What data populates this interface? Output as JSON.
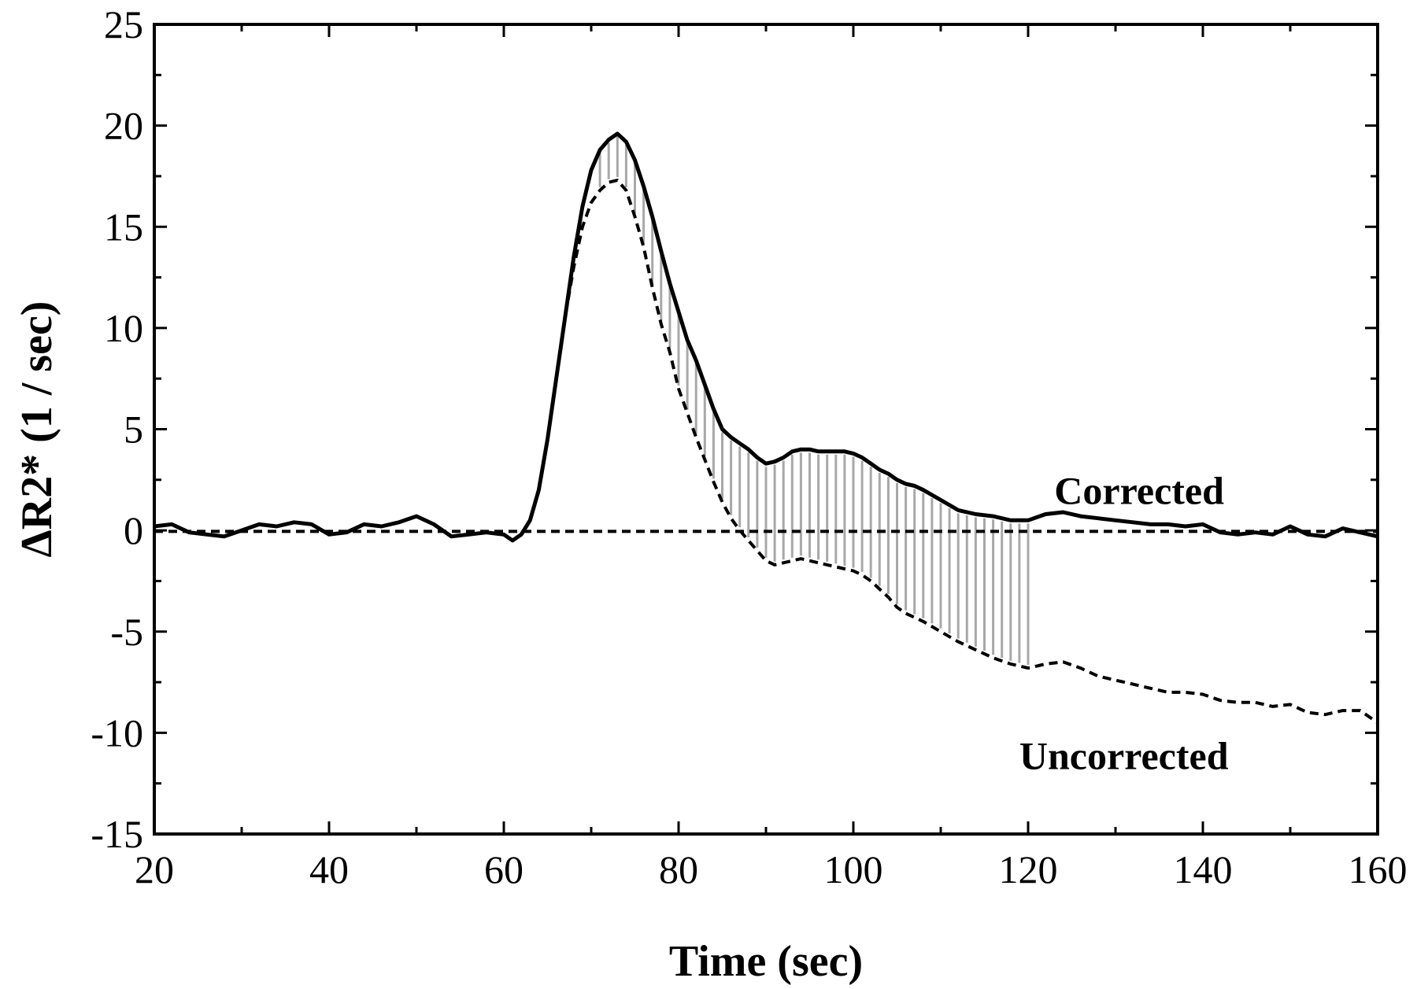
{
  "chart_data": {
    "type": "line",
    "title": "",
    "xlabel": "Time (sec)",
    "ylabel": "ΔR2* (1 / sec)",
    "xlim": [
      20,
      160
    ],
    "ylim": [
      -15,
      25
    ],
    "xticks": [
      20,
      40,
      60,
      80,
      100,
      120,
      140,
      160
    ],
    "yticks": [
      -15,
      -10,
      -5,
      0,
      5,
      10,
      15,
      20,
      25
    ],
    "grid": false,
    "legend": "none",
    "annotations": [
      {
        "text": "Corrected",
        "near_series": "corrected"
      },
      {
        "text": "Uncorrected",
        "near_series": "uncorrected"
      }
    ],
    "shaded_region": {
      "description": "vertical gray hatch between curves",
      "x_range": [
        71,
        120
      ]
    },
    "series": [
      {
        "id": "corrected",
        "style": "solid",
        "color": "#000000",
        "x": [
          20,
          22,
          24,
          26,
          28,
          30,
          32,
          34,
          36,
          38,
          40,
          42,
          44,
          46,
          48,
          50,
          52,
          54,
          56,
          58,
          60,
          61,
          62,
          63,
          64,
          65,
          66,
          67,
          68,
          69,
          70,
          71,
          72,
          73,
          74,
          75,
          76,
          77,
          78,
          79,
          80,
          81,
          82,
          83,
          84,
          85,
          86,
          87,
          88,
          89,
          90,
          91,
          92,
          93,
          94,
          95,
          96,
          97,
          98,
          99,
          100,
          101,
          102,
          103,
          104,
          105,
          106,
          107,
          108,
          110,
          112,
          114,
          116,
          118,
          120,
          122,
          124,
          126,
          128,
          130,
          132,
          134,
          136,
          138,
          140,
          142,
          144,
          146,
          148,
          150,
          152,
          154,
          156,
          158,
          160
        ],
        "y": [
          0.2,
          0.3,
          -0.1,
          -0.2,
          -0.3,
          0.0,
          0.3,
          0.2,
          0.4,
          0.3,
          -0.2,
          -0.1,
          0.3,
          0.2,
          0.4,
          0.7,
          0.3,
          -0.3,
          -0.2,
          -0.1,
          -0.2,
          -0.5,
          -0.2,
          0.5,
          2.0,
          4.5,
          7.5,
          10.5,
          13.5,
          16.0,
          17.8,
          18.8,
          19.3,
          19.6,
          19.2,
          18.3,
          17.0,
          15.5,
          13.8,
          12.2,
          10.8,
          9.4,
          8.4,
          7.2,
          6.0,
          5.0,
          4.6,
          4.3,
          4.0,
          3.6,
          3.3,
          3.4,
          3.6,
          3.9,
          4.0,
          4.0,
          3.9,
          3.9,
          3.9,
          3.9,
          3.8,
          3.6,
          3.3,
          3.0,
          2.8,
          2.5,
          2.3,
          2.2,
          2.0,
          1.5,
          1.0,
          0.8,
          0.7,
          0.5,
          0.5,
          0.8,
          0.9,
          0.7,
          0.6,
          0.5,
          0.4,
          0.3,
          0.3,
          0.2,
          0.3,
          -0.1,
          -0.2,
          -0.1,
          -0.2,
          0.2,
          -0.2,
          -0.3,
          0.1,
          -0.1,
          -0.3
        ]
      },
      {
        "id": "uncorrected",
        "style": "dashed",
        "color": "#000000",
        "x": [
          62,
          63,
          64,
          65,
          66,
          67,
          68,
          69,
          70,
          71,
          72,
          73,
          74,
          75,
          76,
          77,
          78,
          79,
          80,
          81,
          82,
          83,
          84,
          85,
          86,
          87,
          88,
          89,
          90,
          91,
          92,
          93,
          94,
          95,
          96,
          97,
          98,
          99,
          100,
          101,
          102,
          103,
          104,
          105,
          106,
          107,
          108,
          110,
          112,
          114,
          116,
          118,
          120,
          122,
          124,
          126,
          128,
          130,
          132,
          134,
          136,
          138,
          140,
          142,
          144,
          146,
          148,
          150,
          152,
          154,
          156,
          158,
          160
        ],
        "y": [
          -0.2,
          0.5,
          2.0,
          4.5,
          7.5,
          10.5,
          13.0,
          15.0,
          16.2,
          16.8,
          17.2,
          17.3,
          16.8,
          15.5,
          14.0,
          12.0,
          10.2,
          8.8,
          7.0,
          5.8,
          4.6,
          3.5,
          2.4,
          1.4,
          0.6,
          0.0,
          -0.5,
          -1.0,
          -1.5,
          -1.7,
          -1.6,
          -1.5,
          -1.4,
          -1.5,
          -1.6,
          -1.7,
          -1.8,
          -1.9,
          -2.0,
          -2.2,
          -2.5,
          -2.9,
          -3.3,
          -3.8,
          -4.1,
          -4.3,
          -4.5,
          -5.0,
          -5.5,
          -5.9,
          -6.3,
          -6.6,
          -6.8,
          -6.6,
          -6.5,
          -6.8,
          -7.2,
          -7.4,
          -7.6,
          -7.8,
          -8.0,
          -8.0,
          -8.1,
          -8.4,
          -8.5,
          -8.5,
          -8.7,
          -8.6,
          -9.0,
          -9.1,
          -8.9,
          -8.9,
          -9.5
        ]
      },
      {
        "id": "baseline",
        "style": "dashed",
        "color": "#000000",
        "x": [
          20,
          160
        ],
        "y": [
          -0.05,
          -0.05
        ]
      }
    ]
  }
}
